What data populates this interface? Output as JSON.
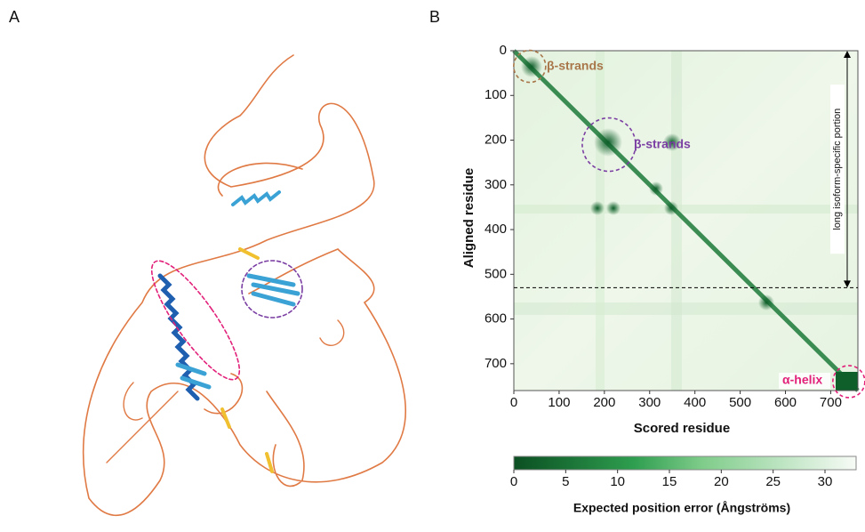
{
  "panel_labels": [
    "A",
    "B"
  ],
  "chart_data": {
    "type": "heatmap",
    "xlabel": "Scored residue",
    "ylabel": "Aligned residue",
    "xlim": [
      0,
      760
    ],
    "ylim": [
      0,
      760
    ],
    "xticks": [
      0,
      100,
      200,
      300,
      400,
      500,
      600,
      700
    ],
    "yticks": [
      0,
      100,
      200,
      300,
      400,
      500,
      600,
      700
    ],
    "divider": 530,
    "divider_label": "long isoform-specific portion",
    "annotations": [
      {
        "text": "β-strands",
        "color": "#a9764a"
      },
      {
        "text": "β-strands",
        "color": "#7b3fa3"
      },
      {
        "text": "α-helix",
        "color": "#e2217a"
      }
    ],
    "colorbar": {
      "label": "Expected position error (Ångströms)",
      "lim": [
        0,
        33
      ],
      "ticks": [
        0,
        5,
        10,
        15,
        20,
        25,
        30
      ]
    }
  }
}
